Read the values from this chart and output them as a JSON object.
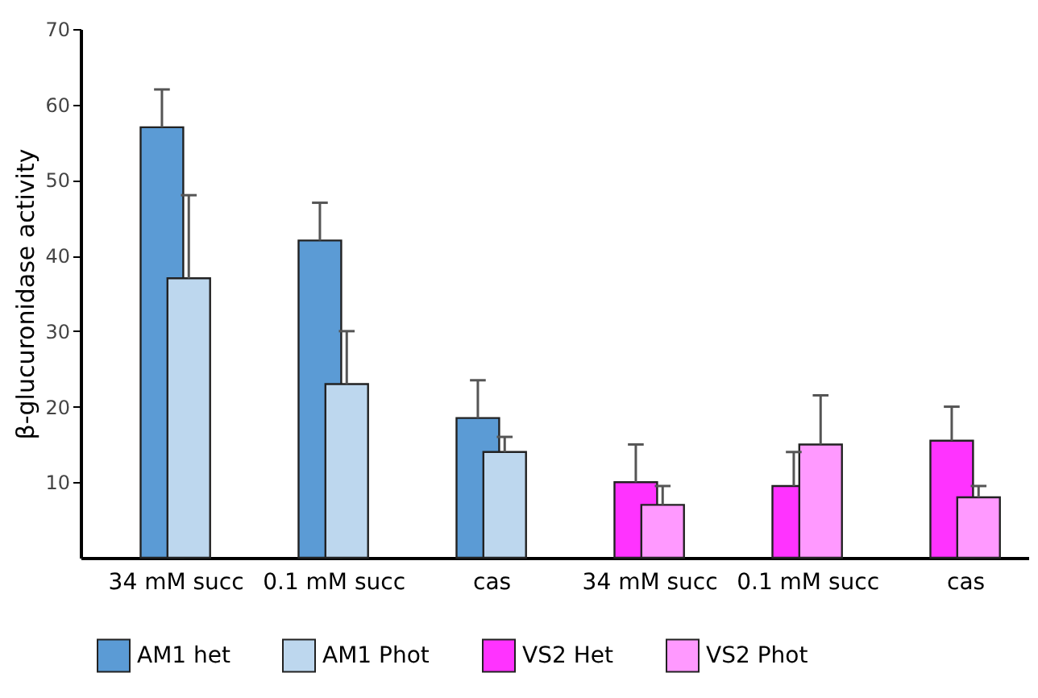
{
  "chart_data": {
    "type": "bar",
    "ylabel": "β-glucuronidase activity",
    "categories": [
      "34 mM succ",
      "0.1 mM succ",
      "cas",
      "34 mM succ",
      "0.1 mM succ",
      "cas"
    ],
    "series": [
      {
        "name": "AM1 het",
        "color": "#5b9bd5",
        "values": [
          57,
          42,
          18.5,
          null,
          null,
          null
        ],
        "errors": [
          [
            57,
            62
          ],
          [
            42,
            47
          ],
          [
            18.5,
            23.5
          ],
          null,
          null,
          null
        ]
      },
      {
        "name": "AM1 Phot",
        "color": "#bdd7ee",
        "values": [
          37,
          23,
          14,
          null,
          null,
          null
        ],
        "errors": [
          [
            37,
            48
          ],
          [
            23,
            30
          ],
          [
            14,
            16
          ],
          null,
          null,
          null
        ]
      },
      {
        "name": "VS2 Het",
        "color": "#ff33ff",
        "values": [
          null,
          null,
          null,
          10,
          9.5,
          15.5
        ],
        "errors": [
          null,
          null,
          null,
          [
            10,
            15
          ],
          [
            9.5,
            14
          ],
          [
            15.5,
            20
          ]
        ]
      },
      {
        "name": "VS2 Phot",
        "color": "#ff99ff",
        "values": [
          null,
          null,
          null,
          7,
          15,
          8
        ],
        "errors": [
          null,
          null,
          null,
          [
            7,
            9.5
          ],
          [
            15,
            21.5
          ],
          [
            8,
            9.5
          ]
        ]
      }
    ],
    "ylim": [
      0,
      70
    ],
    "yticks": [
      10,
      20,
      30,
      40,
      50,
      60,
      70
    ],
    "legend": "bottom"
  }
}
